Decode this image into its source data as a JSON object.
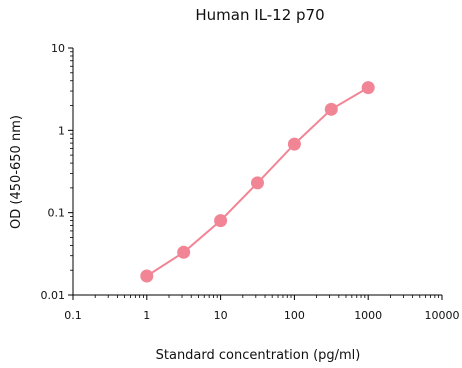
{
  "chart_data": {
    "type": "scatter",
    "title": "Human IL-12 p70",
    "xlabel": "Standard concentration (pg/ml)",
    "ylabel": "OD (450-650 nm)",
    "x_scale": "log",
    "y_scale": "log",
    "xlim": [
      0.1,
      10000
    ],
    "ylim": [
      0.01,
      10
    ],
    "x_tick_labels": [
      "0.1",
      "1",
      "10",
      "100",
      "1000",
      "10000"
    ],
    "y_tick_labels": [
      "0.01",
      "0.1",
      "1",
      "10"
    ],
    "grid": false,
    "series": [
      {
        "color": "#f28595",
        "x": [
          1,
          3.16,
          10,
          31.6,
          100,
          316,
          1000
        ],
        "y": [
          0.017,
          0.033,
          0.08,
          0.23,
          0.68,
          1.8,
          3.3
        ]
      }
    ]
  }
}
